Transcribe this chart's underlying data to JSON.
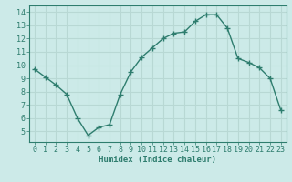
{
  "x": [
    0,
    1,
    2,
    3,
    4,
    5,
    6,
    7,
    8,
    9,
    10,
    11,
    12,
    13,
    14,
    15,
    16,
    17,
    18,
    19,
    20,
    21,
    22,
    23
  ],
  "y": [
    9.7,
    9.1,
    8.5,
    7.8,
    6.0,
    4.7,
    5.3,
    5.5,
    7.8,
    9.5,
    10.6,
    11.3,
    12.0,
    12.4,
    12.5,
    13.3,
    13.8,
    13.8,
    12.8,
    10.5,
    10.2,
    9.8,
    9.0,
    6.6
  ],
  "line_color": "#2e7d6e",
  "marker": "+",
  "marker_size": 4,
  "linewidth": 1.0,
  "xlabel": "Humidex (Indice chaleur)",
  "xlim": [
    -0.5,
    23.5
  ],
  "ylim": [
    4.2,
    14.5
  ],
  "yticks": [
    5,
    6,
    7,
    8,
    9,
    10,
    11,
    12,
    13,
    14
  ],
  "xticks": [
    0,
    1,
    2,
    3,
    4,
    5,
    6,
    7,
    8,
    9,
    10,
    11,
    12,
    13,
    14,
    15,
    16,
    17,
    18,
    19,
    20,
    21,
    22,
    23
  ],
  "bg_color": "#cceae8",
  "grid_color": "#b8d8d4",
  "tick_color": "#2e7d6e",
  "label_color": "#2e7d6e",
  "xlabel_fontsize": 6.5,
  "tick_fontsize": 6.0
}
